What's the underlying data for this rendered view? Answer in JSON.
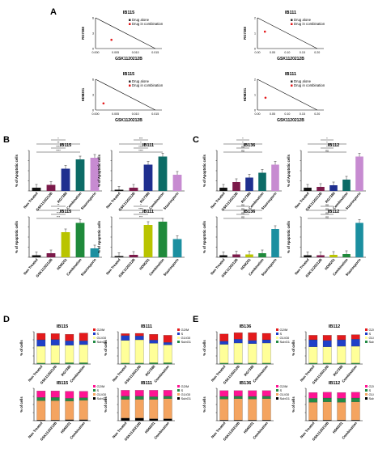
{
  "panels": {
    "A": "A",
    "B": "B",
    "C": "C",
    "D": "D",
    "E": "E"
  },
  "colors": {
    "ctrl": "#111111",
    "gsk": "#7b1a4a",
    "rg": "#1f2f8f",
    "comb": "#0c6b66",
    "stauro": "#c78bd1",
    "hdm": "#b9c400",
    "comb2": "#1f8a3b",
    "stauro2": "#1b8fa0",
    "g2m": "#e41a1c",
    "s": "#1f3fc8",
    "g1": "#ffff99",
    "subg1": "#238b45",
    "g2m2": "#ff1493",
    "subg12": "#000000",
    "g12": "#f4a460",
    "alone": "#333333",
    "combo": "#e41a1c"
  },
  "chart_data": [
    {
      "type": "scatter",
      "panel": "A",
      "title": "IB115",
      "ylabel": "RG7388",
      "xlabel": "GSK1120212B",
      "xticks": [
        "0.000",
        "0.005",
        "0.010",
        "0.015"
      ],
      "yticks": [
        "0",
        "3",
        "6"
      ],
      "legend": [
        "Drug alone",
        "Drug in combination"
      ],
      "points": [
        {
          "x": 0.004,
          "y": 1.7
        }
      ]
    },
    {
      "type": "scatter",
      "panel": "A",
      "title": "IB111",
      "ylabel": "RG7388",
      "xlabel": "GSK1120212B",
      "xticks": [
        "0.00",
        "0.05",
        "0.10",
        "0.15",
        "0.20"
      ],
      "yticks": [
        "0",
        "1",
        "2"
      ],
      "legend": [
        "Drug alone",
        "Drug in combination"
      ],
      "points": [
        {
          "x": 0.025,
          "y": 1.1
        }
      ]
    },
    {
      "type": "scatter",
      "panel": "A",
      "title": "IB115",
      "ylabel": "HDM201",
      "xlabel": "GSK1120212B",
      "xticks": [
        "0.000",
        "0.005",
        "0.010",
        "0.015"
      ],
      "yticks": [
        "0",
        "3",
        "6"
      ],
      "legend": [
        "Drug alone",
        "Drug in combination"
      ],
      "points": [
        {
          "x": 0.002,
          "y": 1.3
        }
      ]
    },
    {
      "type": "scatter",
      "panel": "A",
      "title": "IB111",
      "ylabel": "HDM201",
      "xlabel": "GSK1120212B",
      "xticks": [
        "0.00",
        "0.05",
        "0.10",
        "0.15",
        "0.20"
      ],
      "yticks": [
        "0",
        "1",
        "2"
      ],
      "legend": [
        "Drug alone",
        "Drug in combination"
      ],
      "points": [
        {
          "x": 0.027,
          "y": 0.8
        }
      ]
    },
    {
      "type": "bar",
      "panel": "B",
      "title": "IB115",
      "ylabel": "% of Apoptotic cells",
      "categories": [
        "Non Treated",
        "GSK1120212B",
        "RG7388",
        "Combination",
        "Staurosporin"
      ],
      "values": [
        8,
        15,
        55,
        78,
        82
      ],
      "ylim": [
        0,
        100
      ],
      "sig": [
        "****",
        "****",
        "**",
        "*"
      ]
    },
    {
      "type": "bar",
      "panel": "B",
      "title": "IB111",
      "ylabel": "% of Apoptotic cells",
      "categories": [
        "Non Treated",
        "GSK1120212B",
        "RG7388",
        "Combination",
        "Staurosporin"
      ],
      "values": [
        3,
        8,
        65,
        85,
        40
      ],
      "ylim": [
        0,
        100
      ],
      "sig": [
        "****",
        "****",
        "*",
        "***"
      ]
    },
    {
      "type": "bar",
      "panel": "B",
      "title": "IB115",
      "ylabel": "% of Apoptotic cells",
      "categories": [
        "Non Treated",
        "GSK1120212B",
        "HDM201",
        "Combination",
        "Staurosporin"
      ],
      "values": [
        5,
        10,
        62,
        85,
        22
      ],
      "ylim": [
        0,
        100
      ],
      "sig": [
        "***",
        "***",
        "**",
        "**"
      ]
    },
    {
      "type": "bar",
      "panel": "B",
      "title": "IB111",
      "ylabel": "% of Apoptotic cells",
      "categories": [
        "Non Treated",
        "GSK1120212B",
        "HDM201",
        "Combination",
        "Staurosporin"
      ],
      "values": [
        3,
        6,
        80,
        88,
        45
      ],
      "ylim": [
        0,
        100
      ],
      "sig": [
        "***",
        "***",
        "****",
        "*"
      ]
    },
    {
      "type": "bar",
      "panel": "C",
      "title": "IB136",
      "ylabel": "% of Apoptotic cells",
      "categories": [
        "Non Treated",
        "GSK1120212B",
        "RG7388",
        "Combination",
        "Staurosporin"
      ],
      "values": [
        8,
        22,
        33,
        45,
        65
      ],
      "ylim": [
        0,
        100
      ],
      "sig": [
        "ns",
        "ns",
        "*",
        "*"
      ]
    },
    {
      "type": "bar",
      "panel": "C",
      "title": "IB112",
      "ylabel": "% of Apoptotic cells",
      "categories": [
        "Non Treated",
        "GSK1120212B",
        "RG7388",
        "Combination",
        "Staurosporin"
      ],
      "values": [
        8,
        10,
        14,
        28,
        85
      ],
      "ylim": [
        0,
        100
      ],
      "sig": [
        "ns",
        "*",
        "*",
        "*"
      ]
    },
    {
      "type": "bar",
      "panel": "C",
      "title": "IB136",
      "ylabel": "% of Apoptotic cells",
      "categories": [
        "Non Treated",
        "GSK1120212B",
        "HDM201",
        "Combination",
        "Staurosporin"
      ],
      "values": [
        5,
        7,
        7,
        10,
        70
      ],
      "ylim": [
        0,
        100
      ],
      "sig": [
        "ns",
        "ns",
        "ns",
        "ns"
      ]
    },
    {
      "type": "bar",
      "panel": "C",
      "title": "IB112",
      "ylabel": "% of Apoptotic cells",
      "categories": [
        "Non Treated",
        "GSK1120212B",
        "HDM201",
        "Combination",
        "Staurosporin"
      ],
      "values": [
        5,
        5,
        6,
        8,
        85
      ],
      "ylim": [
        0,
        100
      ],
      "sig": [
        "ns",
        "ns",
        "ns",
        "ns"
      ]
    },
    {
      "type": "bar",
      "panel": "D",
      "stacked": true,
      "title": "IB115",
      "ylabel": "% of cells",
      "categories": [
        "Non Treated",
        "GSK1120212B",
        "RG7388",
        "Combination"
      ],
      "series": [
        {
          "name": "SubG1",
          "values": [
            3,
            3,
            4,
            4
          ]
        },
        {
          "name": "G1/G0",
          "values": [
            52,
            55,
            54,
            56
          ]
        },
        {
          "name": "S",
          "values": [
            20,
            18,
            14,
            12
          ]
        },
        {
          "name": "G2/M",
          "values": [
            20,
            18,
            20,
            24
          ]
        }
      ],
      "ylim": [
        0,
        100
      ],
      "legend": [
        "G2/M",
        "S",
        "G1/G0",
        "SubG1"
      ]
    },
    {
      "type": "bar",
      "panel": "D",
      "stacked": true,
      "title": "IB111",
      "ylabel": "% of cells",
      "categories": [
        "Non Treated",
        "GSK1120212B",
        "RG7388",
        "Combination"
      ],
      "series": [
        {
          "name": "SubG1",
          "values": [
            3,
            3,
            4,
            4
          ]
        },
        {
          "name": "G1/G0",
          "values": [
            70,
            72,
            60,
            55
          ]
        },
        {
          "name": "S",
          "values": [
            15,
            12,
            10,
            8
          ]
        },
        {
          "name": "G2/M",
          "values": [
            6,
            8,
            18,
            22
          ]
        }
      ],
      "ylim": [
        0,
        100
      ],
      "legend": [
        "G2/M",
        "S",
        "G1/G0",
        "SubG1"
      ]
    },
    {
      "type": "bar",
      "panel": "D",
      "stacked": true,
      "title": "IB115",
      "ylabel": "% of cells",
      "categories": [
        "Non Treated",
        "GSK1120212B",
        "HDM201",
        "Combination"
      ],
      "series": [
        {
          "name": "SubG1",
          "values": [
            2,
            2,
            3,
            3
          ]
        },
        {
          "name": "G1/G0",
          "values": [
            60,
            60,
            58,
            60
          ]
        },
        {
          "name": "S",
          "values": [
            10,
            10,
            8,
            8
          ]
        },
        {
          "name": "G2/M",
          "values": [
            20,
            20,
            22,
            20
          ]
        }
      ],
      "ylim": [
        0,
        100
      ],
      "legend": [
        "G2/M",
        "S",
        "G1/G0",
        "SubG1"
      ]
    },
    {
      "type": "bar",
      "panel": "D",
      "stacked": true,
      "title": "IB111",
      "ylabel": "% of cells",
      "categories": [
        "Non Treated",
        "GSK1120212B",
        "HDM201",
        "Combination"
      ],
      "series": [
        {
          "name": "SubG1",
          "values": [
            8,
            8,
            6,
            6
          ]
        },
        {
          "name": "G1/G0",
          "values": [
            58,
            58,
            60,
            62
          ]
        },
        {
          "name": "S",
          "values": [
            10,
            10,
            8,
            8
          ]
        },
        {
          "name": "G2/M",
          "values": [
            18,
            18,
            20,
            18
          ]
        }
      ],
      "ylim": [
        0,
        100
      ],
      "legend": [
        "G2/M",
        "S",
        "G1/G0",
        "SubG1"
      ]
    },
    {
      "type": "bar",
      "panel": "E",
      "stacked": true,
      "title": "IB136",
      "ylabel": "% of cells",
      "categories": [
        "Non Treated",
        "GSK1120212B",
        "RG7388",
        "Combination"
      ],
      "series": [
        {
          "name": "SubG1",
          "values": [
            3,
            3,
            3,
            3
          ]
        },
        {
          "name": "G1/G0",
          "values": [
            58,
            62,
            60,
            62
          ]
        },
        {
          "name": "S",
          "values": [
            10,
            12,
            10,
            10
          ]
        },
        {
          "name": "G2/M",
          "values": [
            22,
            20,
            24,
            20
          ]
        }
      ],
      "ylim": [
        0,
        100
      ],
      "legend": [
        "G2/M",
        "S",
        "G1/G0",
        "SubG1"
      ]
    },
    {
      "type": "bar",
      "panel": "E",
      "stacked": true,
      "title": "IB112",
      "ylabel": "% of cells",
      "categories": [
        "Non Treated",
        "GSK1120212B",
        "RG7388",
        "Combination"
      ],
      "series": [
        {
          "name": "SubG1",
          "values": [
            3,
            3,
            3,
            3
          ]
        },
        {
          "name": "G1/G0",
          "values": [
            50,
            50,
            52,
            52
          ]
        },
        {
          "name": "S",
          "values": [
            22,
            20,
            20,
            22
          ]
        },
        {
          "name": "G2/M",
          "values": [
            14,
            16,
            14,
            14
          ]
        }
      ],
      "ylim": [
        0,
        100
      ],
      "legend": [
        "G2/M",
        "S",
        "G1/G0",
        "SubG1"
      ]
    },
    {
      "type": "bar",
      "panel": "E",
      "stacked": true,
      "title": "IB136",
      "ylabel": "% of cells",
      "categories": [
        "Non Treated",
        "GSK1120212B",
        "HDM201",
        "Combination"
      ],
      "series": [
        {
          "name": "SubG1",
          "values": [
            2,
            2,
            2,
            2
          ]
        },
        {
          "name": "G1/G0",
          "values": [
            65,
            66,
            65,
            66
          ]
        },
        {
          "name": "S",
          "values": [
            8,
            8,
            8,
            8
          ]
        },
        {
          "name": "G2/M",
          "values": [
            18,
            17,
            18,
            17
          ]
        }
      ],
      "ylim": [
        0,
        100
      ],
      "legend": [
        "G2/M",
        "S",
        "G1/G0",
        "SubG1"
      ]
    },
    {
      "type": "bar",
      "panel": "E",
      "stacked": true,
      "title": "IB112",
      "ylabel": "% of cells",
      "categories": [
        "Non Treated",
        "GSK1120212B",
        "HDM201",
        "Combination"
      ],
      "series": [
        {
          "name": "SubG1",
          "values": [
            2,
            2,
            2,
            2
          ]
        },
        {
          "name": "G1/G0",
          "values": [
            55,
            56,
            55,
            56
          ]
        },
        {
          "name": "S",
          "values": [
            12,
            12,
            12,
            12
          ]
        },
        {
          "name": "G2/M",
          "values": [
            18,
            18,
            18,
            18
          ]
        }
      ],
      "ylim": [
        0,
        100
      ],
      "legend": [
        "G2/M",
        "S",
        "G1/G0",
        "SubG1"
      ]
    }
  ]
}
